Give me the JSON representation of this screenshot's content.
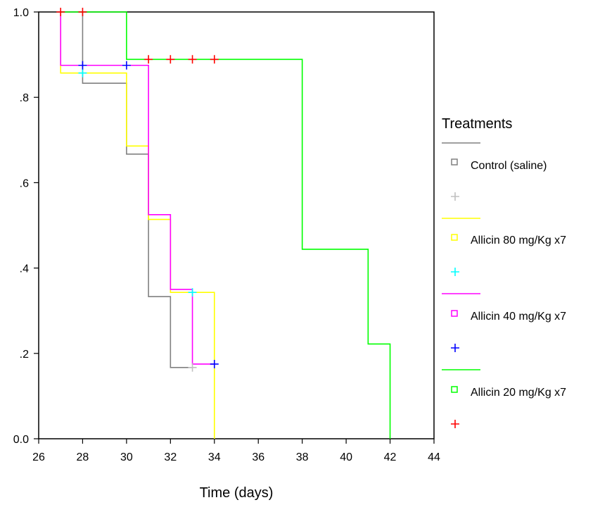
{
  "chart_data": {
    "type": "line",
    "step": true,
    "xlabel": "Time (days)",
    "ylabel": "",
    "xlim": [
      26,
      44
    ],
    "ylim": [
      0,
      1
    ],
    "x_ticks": [
      26,
      28,
      30,
      32,
      34,
      36,
      38,
      40,
      42,
      44
    ],
    "x_tick_labels": [
      "26",
      "28",
      "30",
      "32",
      "34",
      "36",
      "38",
      "40",
      "42",
      "44"
    ],
    "y_ticks": [
      0,
      0.2,
      0.4,
      0.6,
      0.8,
      1.0
    ],
    "y_tick_labels": [
      "0.0",
      ".2",
      ".4",
      ".6",
      ".8",
      "1.0"
    ],
    "grid": false,
    "legend_title": "Treatments",
    "legend_position": "right",
    "censor_marker": "+",
    "series": [
      {
        "name": "Control (saline)",
        "color": "#808080",
        "censor_color": "#c0c0c0",
        "steps": [
          [
            27,
            1.0
          ],
          [
            28,
            0.833
          ],
          [
            30,
            0.667
          ],
          [
            31,
            0.333
          ],
          [
            32,
            0.167
          ],
          [
            33,
            0.167
          ]
        ],
        "censored": [
          [
            33,
            0.167
          ]
        ]
      },
      {
        "name": "Allicin 80 mg/Kg x7",
        "color": "#ffff00",
        "censor_color": "#00ffff",
        "steps": [
          [
            27,
            0.857
          ],
          [
            30,
            0.686
          ],
          [
            31,
            0.514
          ],
          [
            32,
            0.343
          ],
          [
            34,
            0.0
          ]
        ],
        "censored": [
          [
            28,
            0.857
          ],
          [
            33,
            0.343
          ]
        ]
      },
      {
        "name": "Allicin 40 mg/Kg x7",
        "color": "#ff00ff",
        "censor_color": "#0000ff",
        "steps": [
          [
            27,
            0.875
          ],
          [
            31,
            0.525
          ],
          [
            32,
            0.35
          ],
          [
            33,
            0.175
          ],
          [
            34,
            0.175
          ]
        ],
        "censored": [
          [
            28,
            0.875
          ],
          [
            30,
            0.875
          ],
          [
            34,
            0.175
          ]
        ]
      },
      {
        "name": "Allicin 20 mg/Kg x7",
        "color": "#00ff00",
        "censor_color": "#ff0000",
        "steps": [
          [
            27,
            1.0
          ],
          [
            30,
            0.889
          ],
          [
            38,
            0.444
          ],
          [
            41,
            0.222
          ],
          [
            42,
            0.0
          ]
        ],
        "censored": [
          [
            27,
            1.0
          ],
          [
            28,
            1.0
          ],
          [
            31,
            0.889
          ],
          [
            32,
            0.889
          ],
          [
            33,
            0.889
          ],
          [
            34,
            0.889
          ]
        ]
      }
    ]
  }
}
